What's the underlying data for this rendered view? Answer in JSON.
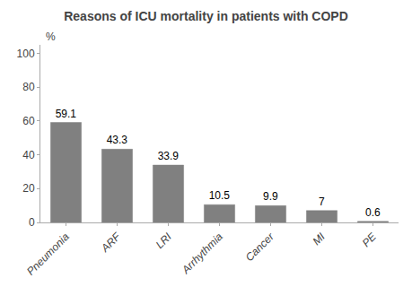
{
  "chart_data": {
    "type": "bar",
    "title": "Reasons of ICU mortality in patients with COPD",
    "categories": [
      "Pneumonia",
      "ARF",
      "LRI",
      "Arrhythmia",
      "Cancer",
      "MI",
      "PE"
    ],
    "values": [
      59.1,
      43.3,
      33.9,
      10.5,
      9.9,
      7,
      0.6
    ],
    "color": "#808080",
    "ylabel": "%",
    "ylim": [
      0,
      105
    ],
    "yticks": [
      0,
      20,
      40,
      60,
      80,
      100
    ],
    "grid": false,
    "data_labels": true
  }
}
